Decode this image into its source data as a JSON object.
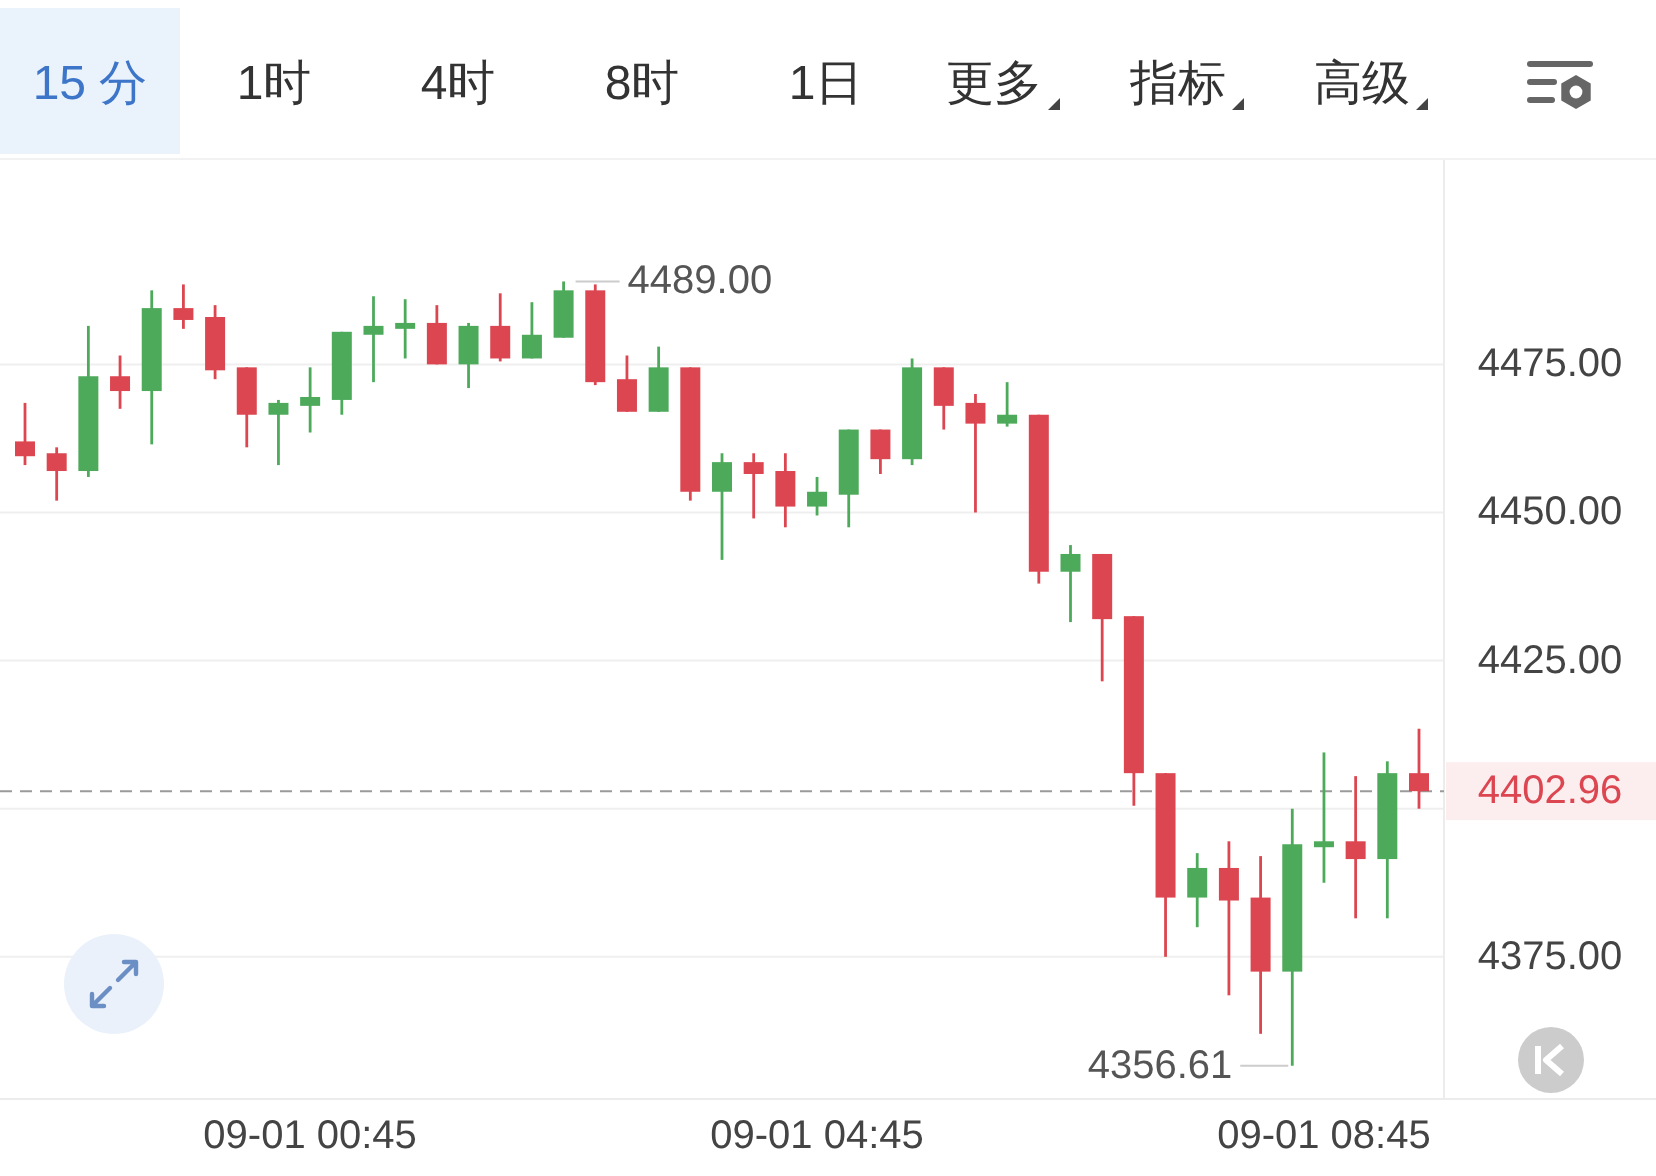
{
  "chart_data": {
    "type": "candlestick",
    "categories": [
      null,
      null,
      null,
      null,
      null,
      null,
      null,
      null,
      null,
      "09-01 00:45",
      null,
      null,
      null,
      null,
      null,
      null,
      null,
      null,
      null,
      null,
      null,
      null,
      null,
      null,
      null,
      "09-01 04:45",
      null,
      null,
      null,
      null,
      null,
      null,
      null,
      null,
      null,
      null,
      null,
      null,
      null,
      null,
      null,
      "09-01 08:45",
      null,
      null,
      null
    ],
    "ohlc": [
      [
        4462,
        4468.5,
        4458,
        4459.5
      ],
      [
        4460,
        4461,
        4452,
        4457
      ],
      [
        4457,
        4481.5,
        4456,
        4473
      ],
      [
        4473,
        4476.5,
        4467.5,
        4470.5
      ],
      [
        4470.5,
        4487.5,
        4461.5,
        4484.5
      ],
      [
        4484.5,
        4488.5,
        4481,
        4482.5
      ],
      [
        4483,
        4485,
        4472.5,
        4474
      ],
      [
        4474.5,
        4474.5,
        4461,
        4466.5
      ],
      [
        4466.5,
        4469,
        4458,
        4468.5
      ],
      [
        4468,
        4474.5,
        4463.5,
        4469.5
      ],
      [
        4469,
        4480.5,
        4466.5,
        4480.5
      ],
      [
        4480,
        4486.5,
        4472,
        4481.5
      ],
      [
        4481,
        4486,
        4476,
        4482
      ],
      [
        4482,
        4485,
        4475,
        4475
      ],
      [
        4475,
        4482,
        4471,
        4481.5
      ],
      [
        4481.5,
        4487,
        4475.5,
        4476
      ],
      [
        4476,
        4485.5,
        4476,
        4480
      ],
      [
        4479.5,
        4489.0,
        4479.5,
        4487.5
      ],
      [
        4487.5,
        4488.5,
        4471.5,
        4472
      ],
      [
        4472.5,
        4476.5,
        4467,
        4467
      ],
      [
        4467,
        4478,
        4467,
        4474.5
      ],
      [
        4474.5,
        4474.5,
        4452,
        4453.5
      ],
      [
        4453.5,
        4460,
        4442,
        4458.5
      ],
      [
        4458.5,
        4460,
        4449,
        4456.5
      ],
      [
        4457,
        4460,
        4447.5,
        4451
      ],
      [
        4451,
        4456,
        4449.5,
        4453.5
      ],
      [
        4453,
        4464,
        4447.5,
        4464
      ],
      [
        4464,
        4464,
        4456.5,
        4459
      ],
      [
        4459,
        4476,
        4458,
        4474.5
      ],
      [
        4474.5,
        4474.5,
        4464,
        4468
      ],
      [
        4468.5,
        4470,
        4450,
        4465
      ],
      [
        4465,
        4472,
        4464.5,
        4466.5
      ],
      [
        4466.5,
        4466.5,
        4438,
        4440
      ],
      [
        4440,
        4444.5,
        4431.5,
        4443
      ],
      [
        4443,
        4443,
        4421.5,
        4432
      ],
      [
        4432.5,
        4432.5,
        4400.5,
        4406
      ],
      [
        4406,
        4406,
        4375,
        4385
      ],
      [
        4385,
        4392.5,
        4380,
        4390
      ],
      [
        4390,
        4394.5,
        4368.5,
        4384.5
      ],
      [
        4385,
        4392,
        4362,
        4372.5
      ],
      [
        4372.5,
        4400,
        4356.61,
        4394
      ],
      [
        4393.5,
        4409.5,
        4387.5,
        4394.5
      ],
      [
        4394.5,
        4405.5,
        4381.5,
        4391.5
      ],
      [
        4391.5,
        4408,
        4381.5,
        4406
      ],
      [
        4406,
        4413.5,
        4400,
        4402.96
      ]
    ],
    "colors": [
      "#dc4651",
      "#dc4651",
      "#4daa5b",
      "#dc4651",
      "#4daa5b",
      "#dc4651",
      "#dc4651",
      "#dc4651",
      "#4daa5b",
      "#4daa5b",
      "#4daa5b",
      "#4daa5b",
      "#4daa5b",
      "#dc4651",
      "#4daa5b",
      "#dc4651",
      "#4daa5b",
      "#4daa5b",
      "#dc4651",
      "#dc4651",
      "#4daa5b",
      "#dc4651",
      "#4daa5b",
      "#dc4651",
      "#dc4651",
      "#4daa5b",
      "#4daa5b",
      "#dc4651",
      "#4daa5b",
      "#dc4651",
      "#dc4651",
      "#4daa5b",
      "#dc4651",
      "#4daa5b",
      "#dc4651",
      "#dc4651",
      "#dc4651",
      "#4daa5b",
      "#dc4651",
      "#dc4651",
      "#4daa5b",
      "#4daa5b",
      "#dc4651",
      "#4daa5b",
      "#dc4651"
    ],
    "ylim": [
      4351,
      4509.5
    ],
    "yticks": [
      {
        "value": 4375,
        "label": "4375.00"
      },
      {
        "value": 4400,
        "label": null
      },
      {
        "value": 4425,
        "label": "4425.00"
      },
      {
        "value": 4450,
        "label": "4450.00"
      },
      {
        "value": 4475,
        "label": "4475.00"
      }
    ],
    "grid": "y",
    "ref_lines": [
      {
        "axis": "y",
        "value": 4402.96,
        "label": "4402.96",
        "color": "#9a9a9a",
        "line_style": "dashed"
      }
    ],
    "annotations": [
      "4489.00",
      "4356.61",
      "15 分",
      "1时",
      "4时",
      "8时",
      "1日",
      "更多",
      "指标",
      "高级"
    ]
  }
}
